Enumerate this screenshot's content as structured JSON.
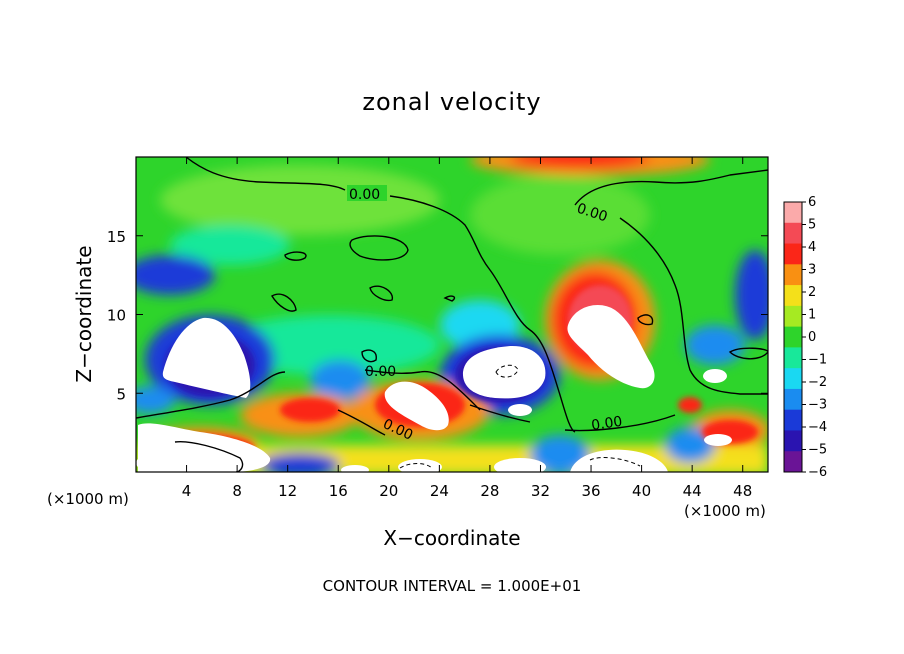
{
  "chart_data": {
    "type": "heatmap",
    "title": "zonal velocity",
    "xlabel": "X−coordinate",
    "ylabel": "Z−coordinate",
    "x_unit_label": "(×1000 m)",
    "y_unit_label": "(×1000 m)",
    "xlim": [
      0,
      50
    ],
    "ylim": [
      0,
      20
    ],
    "x_ticks": [
      4,
      8,
      12,
      16,
      20,
      24,
      28,
      32,
      36,
      40,
      44,
      48
    ],
    "x_tick_labels": [
      "4",
      "8",
      "12",
      "16",
      "20",
      "24",
      "28",
      "32",
      "36",
      "40",
      "44",
      "48"
    ],
    "y_ticks": [
      5,
      10,
      15
    ],
    "y_tick_labels": [
      "5",
      "10",
      "15"
    ],
    "colorbar": {
      "range": [
        -6,
        6
      ],
      "labels": [
        "6",
        "5",
        "4",
        "3",
        "2",
        "1",
        "0",
        "−1",
        "−2",
        "−3",
        "−4",
        "−5",
        "−6"
      ],
      "colors": [
        "#fbaaaa",
        "#f44a55",
        "#fb2618",
        "#f99012",
        "#f4e01a",
        "#a6ea22",
        "#2ed42b",
        "#18e89a",
        "#1ad8f2",
        "#1a8cf0",
        "#1a3ad8",
        "#2a14b0",
        "#6a1496"
      ]
    },
    "contour_labels": [
      "0.00",
      "0.00",
      "0.00",
      "0.00",
      "0.00"
    ],
    "footer": "CONTOUR INTERVAL = 1.000E+01"
  }
}
